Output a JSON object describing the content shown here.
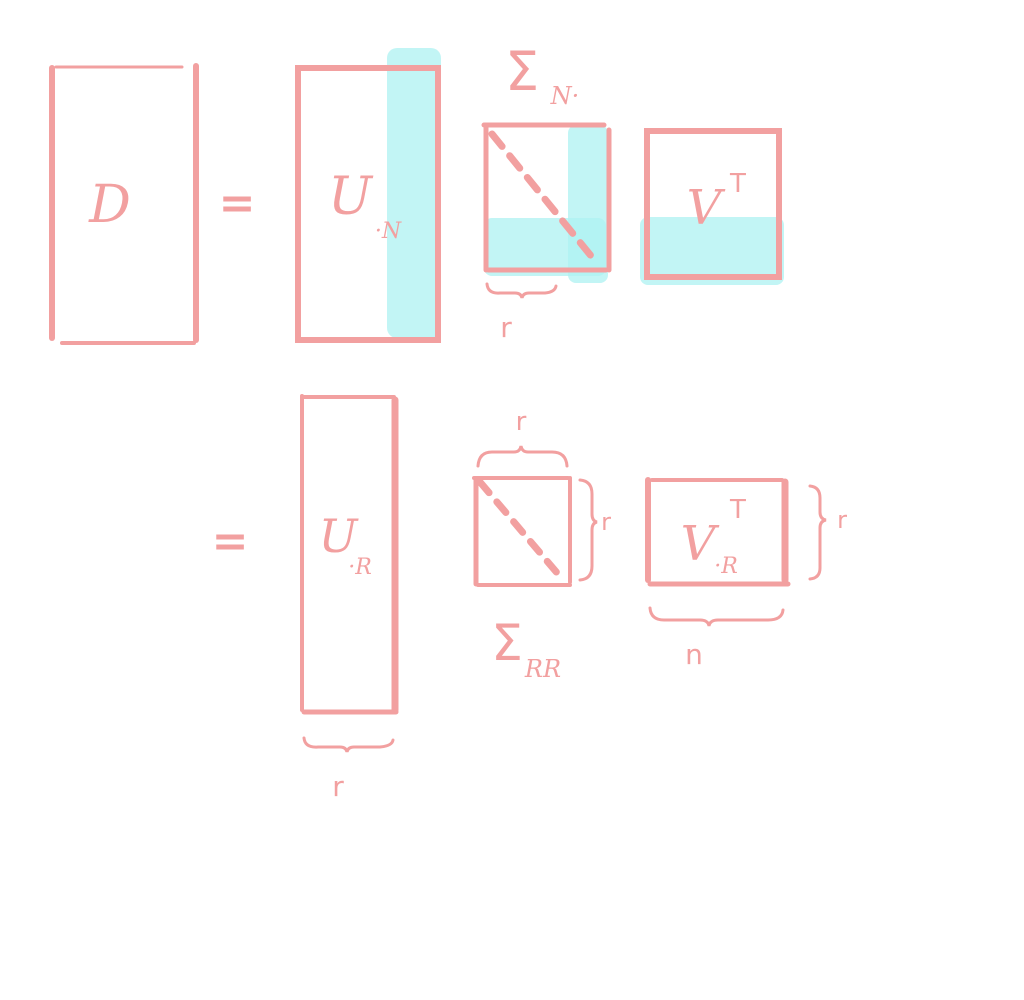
{
  "colors": {
    "ink": "#f2a0a0",
    "highlight": "#aef2f2",
    "background": "#ffffff"
  },
  "row1": {
    "d_label": "D",
    "equals": "=",
    "u_label": "U",
    "u_sub": "·N",
    "sigma_label": "Σ",
    "sigma_sub": "N·",
    "sigma_dim": "r",
    "v_label": "V",
    "v_sup": "T"
  },
  "row2": {
    "equals": "=",
    "u_label": "U",
    "u_sub": "·R",
    "u_dim": "r",
    "sigma_label": "Σ",
    "sigma_sub": "RR",
    "sigma_dim_top": "r",
    "sigma_dim_right": "r",
    "v_label": "V",
    "v_sub": "·R",
    "v_sup": "T",
    "v_dim_right": "r",
    "v_dim_bottom": "n"
  }
}
